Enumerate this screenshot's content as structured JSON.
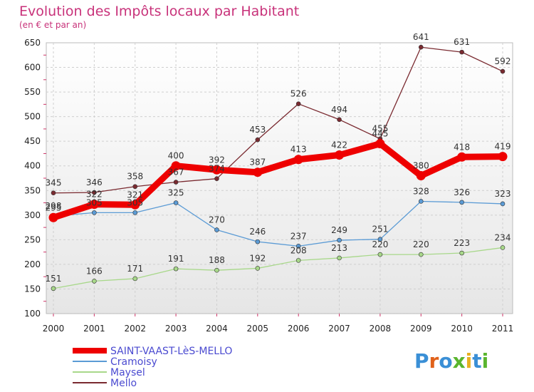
{
  "chart_data": {
    "type": "line",
    "title": "Evolution des Impôts locaux par Habitant",
    "subtitle": "(en € et par an)",
    "x": [
      "2000",
      "2001",
      "2002",
      "2003",
      "2004",
      "2005",
      "2006",
      "2007",
      "2008",
      "2009",
      "2010",
      "2011"
    ],
    "ylim": [
      100,
      650
    ],
    "yticks": [
      100,
      150,
      200,
      250,
      300,
      350,
      400,
      450,
      500,
      550,
      600,
      650
    ],
    "grid": true,
    "legend_position": "bottom-left",
    "series": [
      {
        "name": "SAINT-VAAST-LèS-MELLO",
        "color": "#ee0000",
        "values": [
          295,
          322,
          321,
          400,
          392,
          387,
          413,
          422,
          445,
          380,
          418,
          419
        ]
      },
      {
        "name": "Cramoisy",
        "color": "#5b9bd5",
        "values": [
          298,
          305,
          305,
          325,
          270,
          246,
          237,
          249,
          251,
          328,
          326,
          323
        ]
      },
      {
        "name": "Maysel",
        "color": "#a8d88a",
        "values": [
          151,
          166,
          171,
          191,
          188,
          192,
          208,
          213,
          220,
          220,
          223,
          234
        ]
      },
      {
        "name": "Mello",
        "color": "#7a2a30",
        "values": [
          345,
          346,
          358,
          367,
          374,
          453,
          526,
          494,
          455,
          641,
          631,
          592
        ]
      }
    ]
  },
  "logo": {
    "letters": [
      "P",
      "r",
      "o",
      "x",
      "i",
      "t",
      "i"
    ]
  }
}
